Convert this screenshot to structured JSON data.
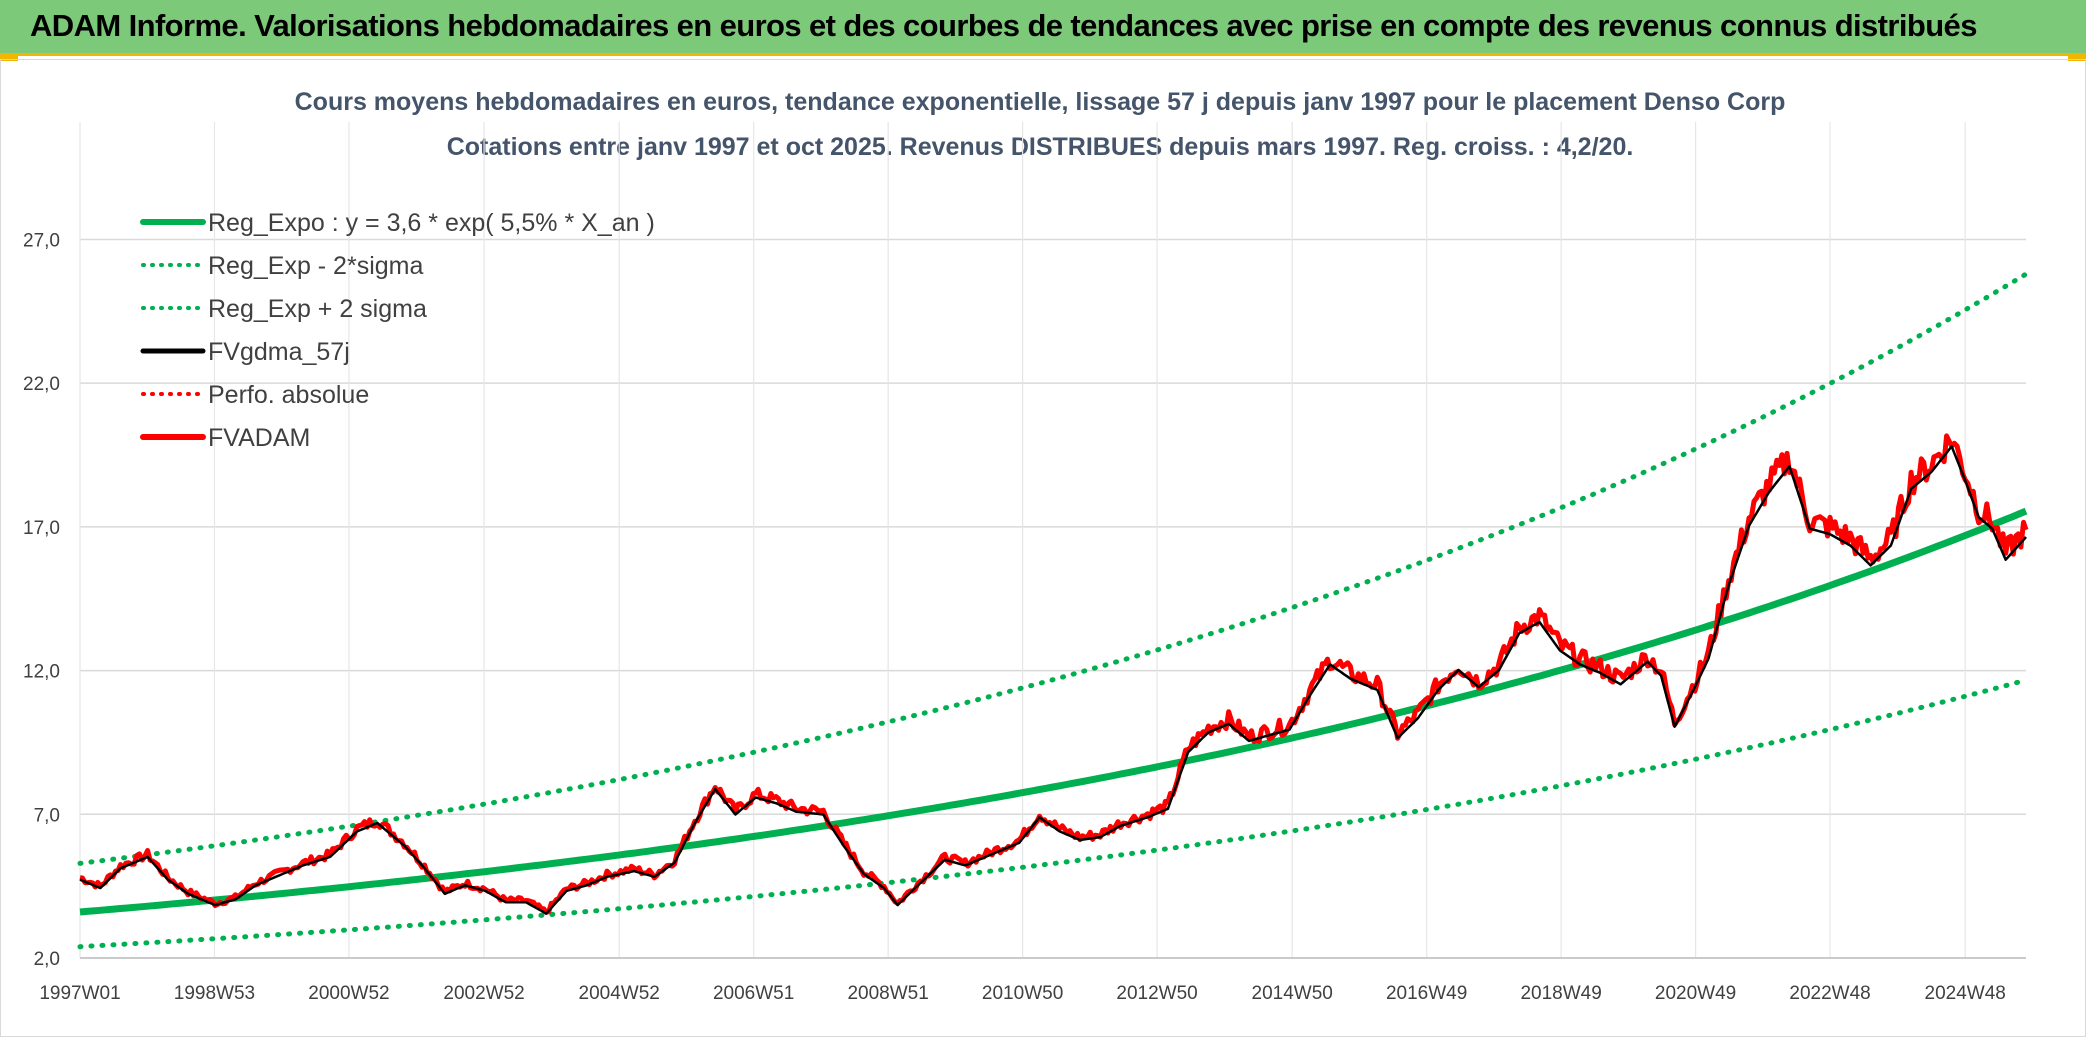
{
  "header": {
    "title": "ADAM Informe. Valorisations hebdomadaires en euros et des courbes de tendances avec prise en compte des revenus connus distribués"
  },
  "chart_data": {
    "type": "line",
    "title": "Cours moyens hebdomadaires en euros, tendance exponentielle, lissage 57 j depuis janv 1997 pour le placement Denso Corp",
    "subtitle": "Cotations entre janv 1997 et oct 2025. Revenus DISTRIBUES depuis mars 1997. Reg. croiss. : 4,2/20.",
    "ylim": [
      2,
      29
    ],
    "yticks": [
      2,
      7,
      12,
      17,
      22,
      27
    ],
    "ytick_labels": [
      "2,0",
      "7,0",
      "12,0",
      "17,0",
      "22,0",
      "27,0"
    ],
    "xlim": [
      1997.0,
      2025.8
    ],
    "xticks": [
      {
        "label": "1997W01",
        "year": 1997.0
      },
      {
        "label": "1998W53",
        "year": 1998.99
      },
      {
        "label": "2000W52",
        "year": 2000.98
      },
      {
        "label": "2002W52",
        "year": 2002.98
      },
      {
        "label": "2004W52",
        "year": 2004.98
      },
      {
        "label": "2006W51",
        "year": 2006.97
      },
      {
        "label": "2008W51",
        "year": 2008.96
      },
      {
        "label": "2010W50",
        "year": 2010.95
      },
      {
        "label": "2012W50",
        "year": 2012.94
      },
      {
        "label": "2014W50",
        "year": 2014.94
      },
      {
        "label": "2016W49",
        "year": 2016.93
      },
      {
        "label": "2018W49",
        "year": 2018.92
      },
      {
        "label": "2020W49",
        "year": 2020.91
      },
      {
        "label": "2022W48",
        "year": 2022.9
      },
      {
        "label": "2024W48",
        "year": 2024.9
      }
    ],
    "grid": true,
    "legend_position": "top-left",
    "trend": {
      "a": 3.6,
      "rate": 0.055,
      "lower_factor": 0.665,
      "upper_factor": 1.47
    },
    "series": [
      {
        "name": "Reg_Expo : y = 3,6 * exp( 5,5% *  X_an )",
        "style": "solid-thick",
        "color": "#00b050"
      },
      {
        "name": "Reg_Exp - 2*sigma",
        "style": "dotted",
        "color": "#00b050"
      },
      {
        "name": "Reg_Exp + 2 sigma",
        "style": "dotted",
        "color": "#00b050"
      },
      {
        "name": "FVgdma_57j",
        "style": "solid",
        "color": "#000000"
      },
      {
        "name": "Perfo. absolue",
        "style": "dotted",
        "color": "#ff0000"
      },
      {
        "name": "FVADAM",
        "style": "solid-thick",
        "color": "#ff0000"
      }
    ],
    "price_points": [
      [
        1997.0,
        4.8
      ],
      [
        1997.3,
        4.5
      ],
      [
        1997.6,
        5.2
      ],
      [
        1998.0,
        5.6
      ],
      [
        1998.3,
        4.8
      ],
      [
        1998.6,
        4.3
      ],
      [
        1999.0,
        3.9
      ],
      [
        1999.3,
        4.1
      ],
      [
        1999.6,
        4.6
      ],
      [
        2000.0,
        5.0
      ],
      [
        2000.3,
        5.3
      ],
      [
        2000.7,
        5.6
      ],
      [
        2001.1,
        6.5
      ],
      [
        2001.4,
        6.8
      ],
      [
        2001.8,
        6.0
      ],
      [
        2002.1,
        5.2
      ],
      [
        2002.4,
        4.3
      ],
      [
        2002.7,
        4.6
      ],
      [
        2003.0,
        4.4
      ],
      [
        2003.3,
        4.0
      ],
      [
        2003.6,
        4.0
      ],
      [
        2003.9,
        3.6
      ],
      [
        2004.2,
        4.4
      ],
      [
        2004.5,
        4.6
      ],
      [
        2004.8,
        4.9
      ],
      [
        2005.2,
        5.1
      ],
      [
        2005.5,
        4.9
      ],
      [
        2005.8,
        5.4
      ],
      [
        2006.1,
        6.8
      ],
      [
        2006.4,
        8.0
      ],
      [
        2006.7,
        7.1
      ],
      [
        2007.0,
        7.7
      ],
      [
        2007.3,
        7.5
      ],
      [
        2007.6,
        7.2
      ],
      [
        2008.0,
        7.1
      ],
      [
        2008.3,
        6.0
      ],
      [
        2008.6,
        5.0
      ],
      [
        2008.9,
        4.5
      ],
      [
        2009.1,
        3.9
      ],
      [
        2009.4,
        4.6
      ],
      [
        2009.8,
        5.5
      ],
      [
        2010.1,
        5.3
      ],
      [
        2010.5,
        5.7
      ],
      [
        2010.9,
        6.1
      ],
      [
        2011.2,
        7.0
      ],
      [
        2011.5,
        6.5
      ],
      [
        2011.8,
        6.2
      ],
      [
        2012.1,
        6.3
      ],
      [
        2012.4,
        6.7
      ],
      [
        2012.8,
        7.0
      ],
      [
        2013.1,
        7.3
      ],
      [
        2013.4,
        9.3
      ],
      [
        2013.7,
        10.0
      ],
      [
        2014.0,
        10.3
      ],
      [
        2014.3,
        9.7
      ],
      [
        2014.6,
        9.9
      ],
      [
        2014.9,
        10.1
      ],
      [
        2015.2,
        11.3
      ],
      [
        2015.5,
        12.4
      ],
      [
        2015.8,
        11.9
      ],
      [
        2016.2,
        11.5
      ],
      [
        2016.5,
        9.8
      ],
      [
        2016.8,
        10.5
      ],
      [
        2017.1,
        11.5
      ],
      [
        2017.4,
        12.2
      ],
      [
        2017.7,
        11.6
      ],
      [
        2018.0,
        12.2
      ],
      [
        2018.3,
        13.5
      ],
      [
        2018.6,
        13.9
      ],
      [
        2018.9,
        12.9
      ],
      [
        2019.2,
        12.4
      ],
      [
        2019.5,
        12.1
      ],
      [
        2019.8,
        11.7
      ],
      [
        2020.2,
        12.5
      ],
      [
        2020.4,
        12.0
      ],
      [
        2020.6,
        10.2
      ],
      [
        2020.9,
        11.6
      ],
      [
        2021.1,
        12.6
      ],
      [
        2021.4,
        15.2
      ],
      [
        2021.7,
        17.3
      ],
      [
        2022.0,
        18.5
      ],
      [
        2022.3,
        19.4
      ],
      [
        2022.6,
        17.2
      ],
      [
        2022.9,
        17.0
      ],
      [
        2023.2,
        16.6
      ],
      [
        2023.5,
        15.9
      ],
      [
        2023.8,
        16.6
      ],
      [
        2024.1,
        18.6
      ],
      [
        2024.4,
        19.2
      ],
      [
        2024.7,
        20.1
      ],
      [
        2024.9,
        18.9
      ],
      [
        2025.1,
        17.6
      ],
      [
        2025.3,
        17.2
      ],
      [
        2025.5,
        16.1
      ],
      [
        2025.8,
        16.9
      ]
    ]
  }
}
